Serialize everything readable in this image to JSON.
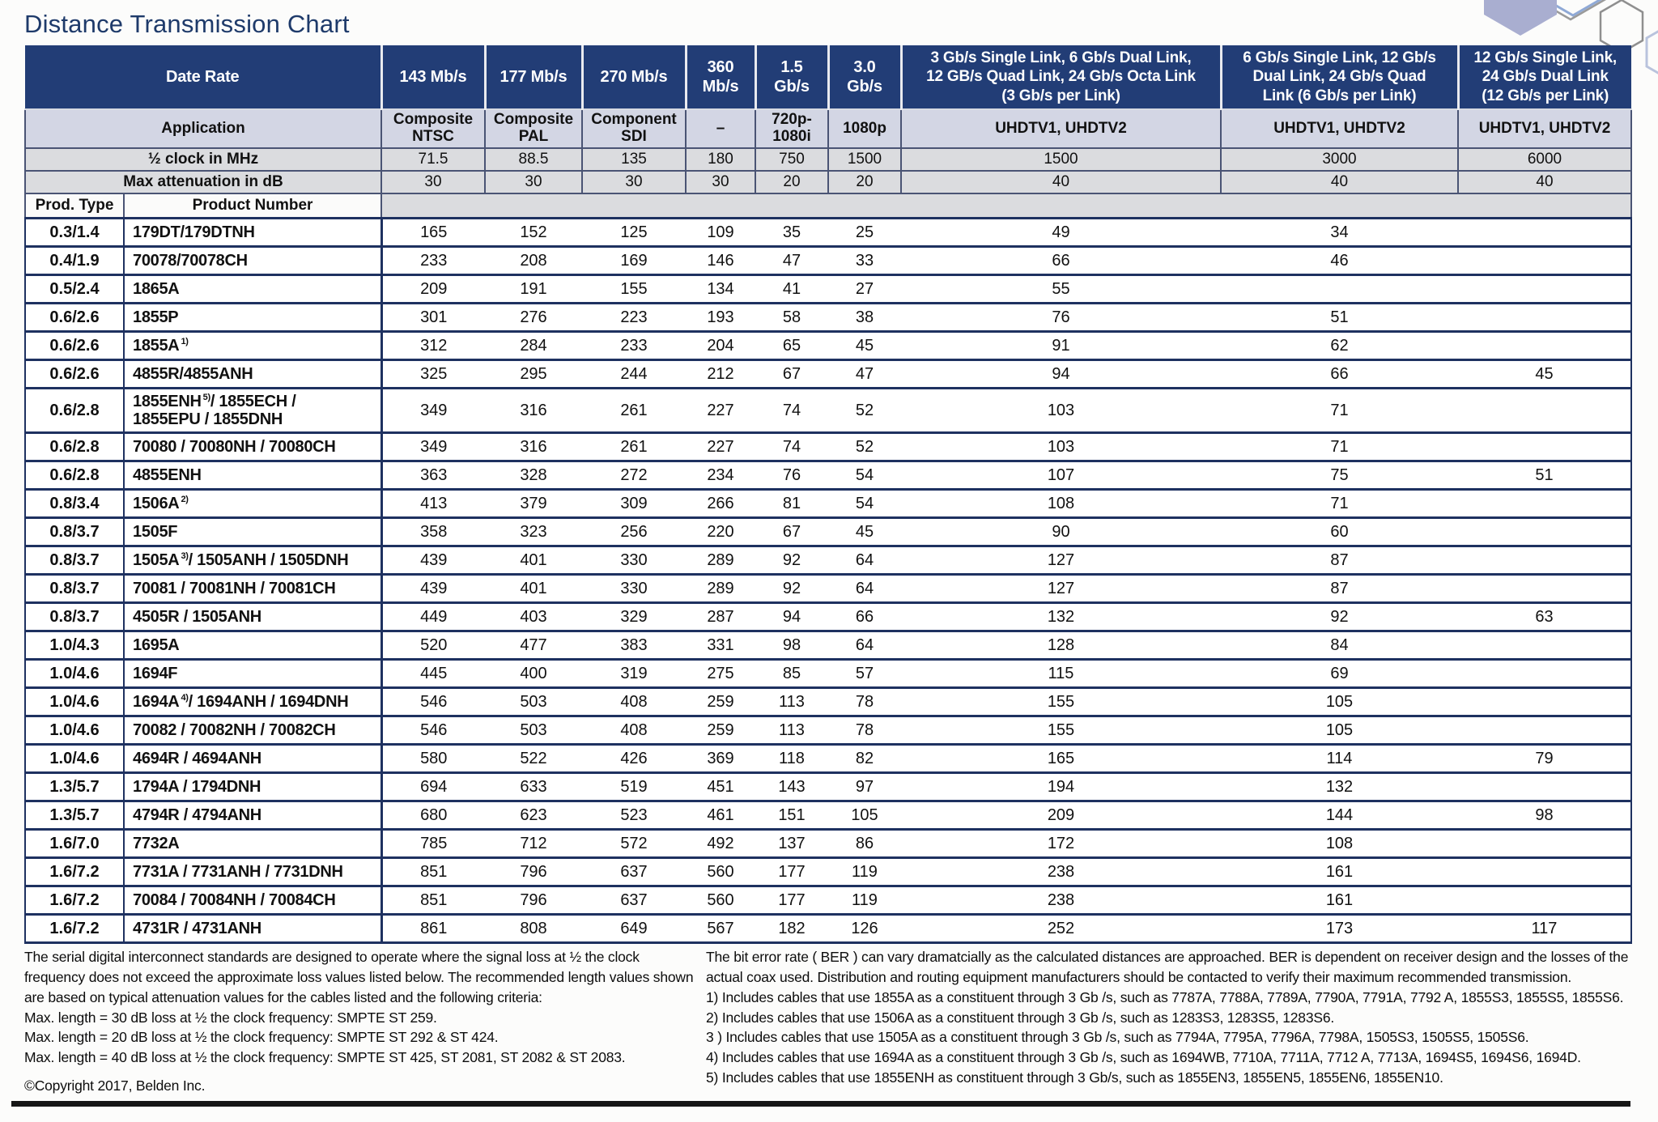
{
  "theme": {
    "navy": "#223d76",
    "line": "#1e3160",
    "line2": "#4a5474",
    "lav": "#d3d6e4",
    "gray": "#dbdcdf",
    "title": "#1e3a6a",
    "page": "#fcfcfb"
  },
  "page": {
    "title": "Distance Transmission Chart"
  },
  "table": {
    "header": {
      "date_rate_label": "Date Rate",
      "application_label": "Application",
      "half_clock_label": "½ clock in MHz",
      "max_atten_label": "Max attenuation in dB",
      "prod_type_label": "Prod. Type",
      "product_number_label": "Product Number",
      "rates": [
        "143 Mb/s",
        "177 Mb/s",
        "270 Mb/s",
        "360\nMb/s",
        "1.5\nGb/s",
        "3.0\nGb/s",
        "3 Gb/s Single Link, 6 Gb/s Dual Link,\n12 GB/s Quad Link, 24 Gb/s Octa Link\n(3 Gb/s per Link)",
        "6 Gb/s Single Link, 12 Gb/s\nDual Link, 24 Gb/s Quad\nLink (6 Gb/s per Link)",
        "12 Gb/s Single Link,\n24 Gb/s Dual Link\n(12 Gb/s per Link)"
      ],
      "applications": [
        "Composite\nNTSC",
        "Composite\nPAL",
        "Component\nSDI",
        "–",
        "720p-\n1080i",
        "1080p",
        "UHDTV1, UHDTV2",
        "UHDTV1, UHDTV2",
        "UHDTV1, UHDTV2"
      ],
      "half_clock": [
        "71.5",
        "88.5",
        "135",
        "180",
        "750",
        "1500",
        "1500",
        "3000",
        "6000"
      ],
      "max_attenuation": [
        "30",
        "30",
        "30",
        "30",
        "20",
        "20",
        "40",
        "40",
        "40"
      ]
    },
    "rows": [
      {
        "type": "0.3/1.4",
        "name": "179DT/179DTNH",
        "sup": "",
        "post": "",
        "values": [
          "165",
          "152",
          "125",
          "109",
          "35",
          "25",
          "49",
          "34",
          ""
        ]
      },
      {
        "type": "0.4/1.9",
        "name": "70078/70078CH",
        "sup": "",
        "post": "",
        "values": [
          "233",
          "208",
          "169",
          "146",
          "47",
          "33",
          "66",
          "46",
          ""
        ]
      },
      {
        "type": "0.5/2.4",
        "name": "1865A",
        "sup": "",
        "post": "",
        "values": [
          "209",
          "191",
          "155",
          "134",
          "41",
          "27",
          "55",
          "",
          ""
        ]
      },
      {
        "type": "0.6/2.6",
        "name": "1855P",
        "sup": "",
        "post": "",
        "values": [
          "301",
          "276",
          "223",
          "193",
          "58",
          "38",
          "76",
          "51",
          ""
        ]
      },
      {
        "type": "0.6/2.6",
        "name": "1855A",
        "sup": "1)",
        "post": "",
        "values": [
          "312",
          "284",
          "233",
          "204",
          "65",
          "45",
          "91",
          "62",
          ""
        ]
      },
      {
        "type": "0.6/2.6",
        "name": "4855R/4855ANH",
        "sup": "",
        "post": "",
        "values": [
          "325",
          "295",
          "244",
          "212",
          "67",
          "47",
          "94",
          "66",
          "45"
        ]
      },
      {
        "type": "0.6/2.8",
        "name": "1855ENH",
        "sup": "5)",
        "post": "/ 1855ECH /\n1855EPU / 1855DNH",
        "values": [
          "349",
          "316",
          "261",
          "227",
          "74",
          "52",
          "103",
          "71",
          ""
        ]
      },
      {
        "type": "0.6/2.8",
        "name": "70080 / 70080NH / 70080CH",
        "sup": "",
        "post": "",
        "values": [
          "349",
          "316",
          "261",
          "227",
          "74",
          "52",
          "103",
          "71",
          ""
        ]
      },
      {
        "type": "0.6/2.8",
        "name": "4855ENH",
        "sup": "",
        "post": "",
        "values": [
          "363",
          "328",
          "272",
          "234",
          "76",
          "54",
          "107",
          "75",
          "51"
        ]
      },
      {
        "type": "0.8/3.4",
        "name": "1506A",
        "sup": "2)",
        "post": "",
        "values": [
          "413",
          "379",
          "309",
          "266",
          "81",
          "54",
          "108",
          "71",
          ""
        ]
      },
      {
        "type": "0.8/3.7",
        "name": "1505F",
        "sup": "",
        "post": "",
        "values": [
          "358",
          "323",
          "256",
          "220",
          "67",
          "45",
          "90",
          "60",
          ""
        ]
      },
      {
        "type": "0.8/3.7",
        "name": "1505A",
        "sup": "3)",
        "post": "/ 1505ANH / 1505DNH",
        "values": [
          "439",
          "401",
          "330",
          "289",
          "92",
          "64",
          "127",
          "87",
          ""
        ]
      },
      {
        "type": "0.8/3.7",
        "name": "70081 / 70081NH / 70081CH",
        "sup": "",
        "post": "",
        "values": [
          "439",
          "401",
          "330",
          "289",
          "92",
          "64",
          "127",
          "87",
          ""
        ]
      },
      {
        "type": "0.8/3.7",
        "name": "4505R / 1505ANH",
        "sup": "",
        "post": "",
        "values": [
          "449",
          "403",
          "329",
          "287",
          "94",
          "66",
          "132",
          "92",
          "63"
        ]
      },
      {
        "type": "1.0/4.3",
        "name": "1695A",
        "sup": "",
        "post": "",
        "values": [
          "520",
          "477",
          "383",
          "331",
          "98",
          "64",
          "128",
          "84",
          ""
        ]
      },
      {
        "type": "1.0/4.6",
        "name": "1694F",
        "sup": "",
        "post": "",
        "values": [
          "445",
          "400",
          "319",
          "275",
          "85",
          "57",
          "115",
          "69",
          ""
        ]
      },
      {
        "type": "1.0/4.6",
        "name": "1694A",
        "sup": "4)",
        "post": "/ 1694ANH / 1694DNH",
        "values": [
          "546",
          "503",
          "408",
          "259",
          "113",
          "78",
          "155",
          "105",
          ""
        ]
      },
      {
        "type": "1.0/4.6",
        "name": "70082 / 70082NH / 70082CH",
        "sup": "",
        "post": "",
        "values": [
          "546",
          "503",
          "408",
          "259",
          "113",
          "78",
          "155",
          "105",
          ""
        ]
      },
      {
        "type": "1.0/4.6",
        "name": "4694R / 4694ANH",
        "sup": "",
        "post": "",
        "values": [
          "580",
          "522",
          "426",
          "369",
          "118",
          "82",
          "165",
          "114",
          "79"
        ]
      },
      {
        "type": "1.3/5.7",
        "name": "1794A / 1794DNH",
        "sup": "",
        "post": "",
        "values": [
          "694",
          "633",
          "519",
          "451",
          "143",
          "97",
          "194",
          "132",
          ""
        ]
      },
      {
        "type": "1.3/5.7",
        "name": "4794R / 4794ANH",
        "sup": "",
        "post": "",
        "values": [
          "680",
          "623",
          "523",
          "461",
          "151",
          "105",
          "209",
          "144",
          "98"
        ]
      },
      {
        "type": "1.6/7.0",
        "name": "7732A",
        "sup": "",
        "post": "",
        "values": [
          "785",
          "712",
          "572",
          "492",
          "137",
          "86",
          "172",
          "108",
          ""
        ]
      },
      {
        "type": "1.6/7.2",
        "name": "7731A / 7731ANH / 7731DNH",
        "sup": "",
        "post": "",
        "values": [
          "851",
          "796",
          "637",
          "560",
          "177",
          "119",
          "238",
          "161",
          ""
        ]
      },
      {
        "type": "1.6/7.2",
        "name": "70084 / 70084NH / 70084CH",
        "sup": "",
        "post": "",
        "values": [
          "851",
          "796",
          "637",
          "560",
          "177",
          "119",
          "238",
          "161",
          ""
        ]
      },
      {
        "type": "1.6/7.2",
        "name": "4731R / 4731ANH",
        "sup": "",
        "post": "",
        "values": [
          "861",
          "808",
          "649",
          "567",
          "182",
          "126",
          "252",
          "173",
          "117"
        ]
      }
    ]
  },
  "footnotes": {
    "left_para": "The serial digital interconnect standards are designed to operate where the signal loss at ½ the clock frequency does not exceed the approximate loss values listed below. The recommended length values shown are based on typical attenuation values for the cables listed and the following criteria:",
    "left_lines": [
      "Max. length = 30 dB loss at ½ the clock frequency: SMPTE ST 259.",
      "Max. length = 20 dB loss at ½ the clock frequency: SMPTE ST 292 & ST 424.",
      "Max. length = 40 dB loss at ½ the clock frequency: SMPTE ST 425, ST 2081, ST 2082 & ST 2083."
    ],
    "copyright": "©Copyright 2017, Belden Inc.",
    "right_para": "The bit error rate ( BER ) can vary dramatcially as the calculated distances are approached. BER is dependent on receiver design and the losses of the actual coax used. Distribution and routing equipment manufacturers should be contacted to verify their maximum recommended transmission.",
    "notes": [
      "1) Includes cables that use 1855A as a constituent through 3 Gb /s, such as 7787A, 7788A, 7789A, 7790A, 7791A, 7792 A, 1855S3, 1855S5, 1855S6.",
      "2) Includes cables that use 1506A as a constituent through 3 Gb /s, such as 1283S3, 1283S5, 1283S6.",
      "3 ) Includes cables that use 1505A as a constituent through 3 Gb /s, such as 7794A, 7795A, 7796A, 7798A, 1505S3, 1505S5, 1505S6.",
      "4) Includes cables that use 1694A as a constituent through 3 Gb /s, such as 1694WB, 7710A, 7711A, 7712 A, 7713A, 1694S5, 1694S6, 1694D.",
      "5) Includes cables that use 1855ENH as constituent through 3 Gb/s, such as 1855EN3, 1855EN5, 1855EN6, 1855EN10."
    ]
  }
}
